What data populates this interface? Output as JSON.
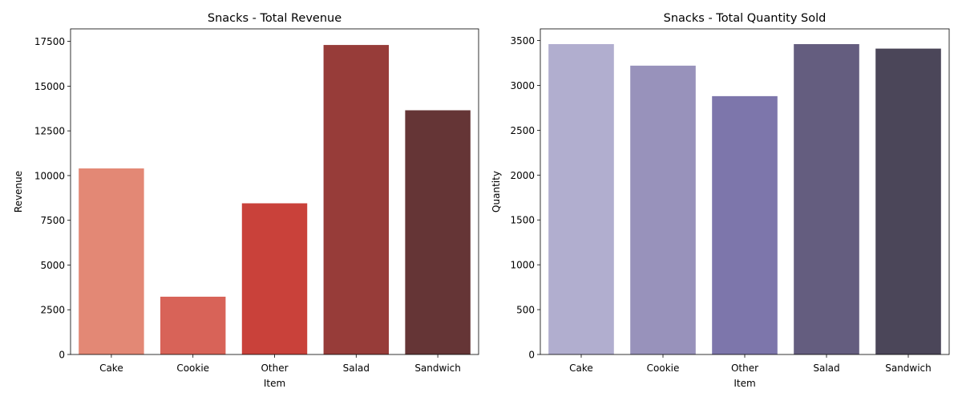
{
  "chart_data": [
    {
      "type": "bar",
      "title": "Snacks - Total Revenue",
      "xlabel": "Item",
      "ylabel": "Revenue",
      "categories": [
        "Cake",
        "Cookie",
        "Other",
        "Salad",
        "Sandwich"
      ],
      "values": [
        10400,
        3230,
        8450,
        17300,
        13650
      ],
      "ylim": [
        0,
        18200
      ],
      "yticks": [
        0,
        2500,
        5000,
        7500,
        10000,
        12500,
        15000,
        17500
      ],
      "colors": [
        "#e38875",
        "#d86358",
        "#c9413a",
        "#973c39",
        "#653536"
      ],
      "grid": false,
      "legend": "none"
    },
    {
      "type": "bar",
      "title": "Snacks - Total Quantity Sold",
      "xlabel": "Item",
      "ylabel": "Quantity",
      "categories": [
        "Cake",
        "Cookie",
        "Other",
        "Salad",
        "Sandwich"
      ],
      "values": [
        3460,
        3220,
        2880,
        3460,
        3410
      ],
      "ylim": [
        0,
        3630
      ],
      "yticks": [
        0,
        500,
        1000,
        1500,
        2000,
        2500,
        3000,
        3500
      ],
      "colors": [
        "#b1aecf",
        "#9892bb",
        "#7d76ab",
        "#645d7f",
        "#4b4659"
      ],
      "grid": false,
      "legend": "none"
    }
  ]
}
